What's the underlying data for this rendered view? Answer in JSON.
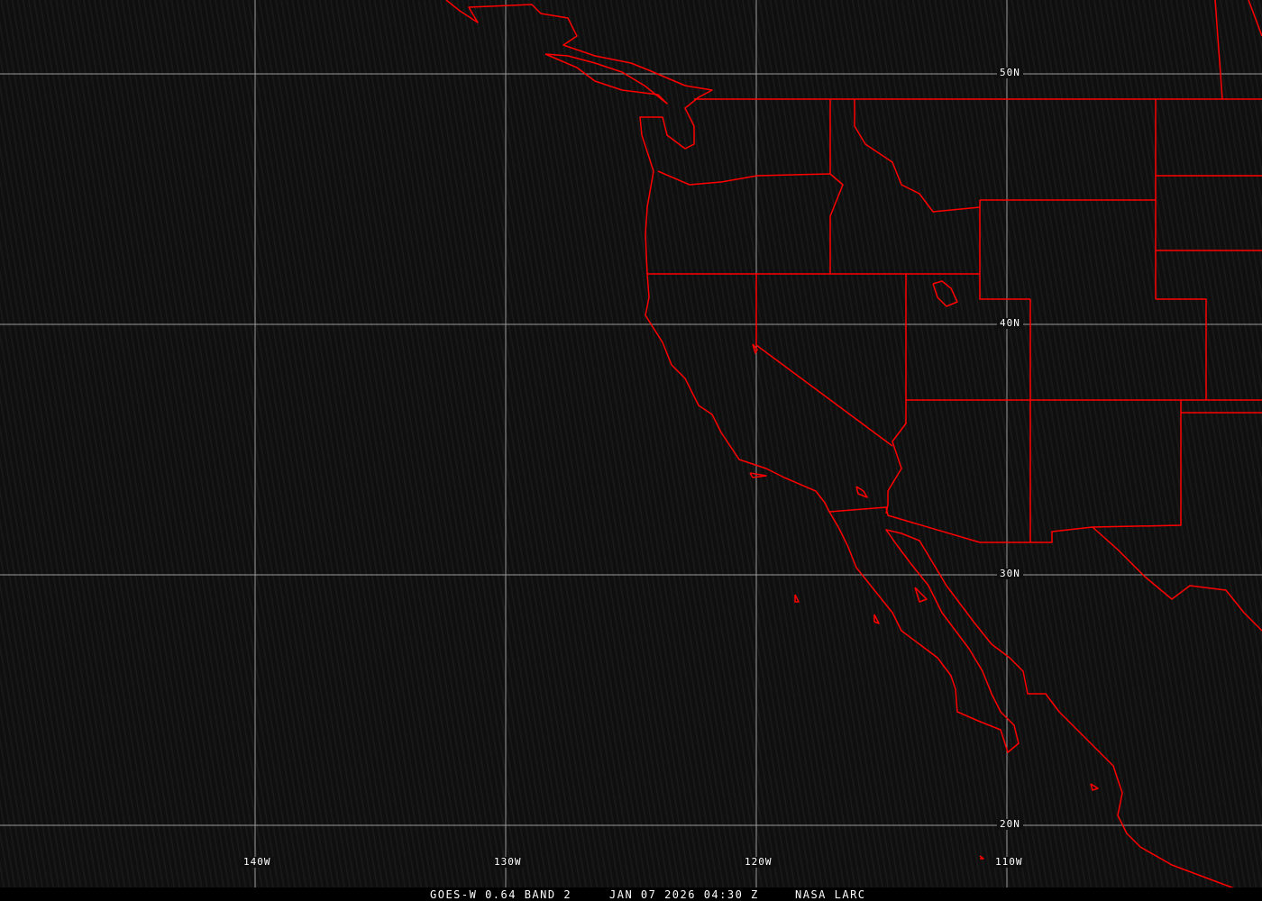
{
  "map": {
    "projection": "equirectangular",
    "background_color": "#0f0f0f",
    "grid_color": "#9a9a9a",
    "boundary_color": "#ff0000",
    "latitude_labels": [
      "50N",
      "40N",
      "30N",
      "20N"
    ],
    "longitude_labels": [
      "140W",
      "130W",
      "120W",
      "110W"
    ]
  },
  "footer": {
    "product": "GOES-W 0.64 BAND 2",
    "datetime": "JAN 07 2026 04:30 Z",
    "source": "NASA LARC"
  }
}
